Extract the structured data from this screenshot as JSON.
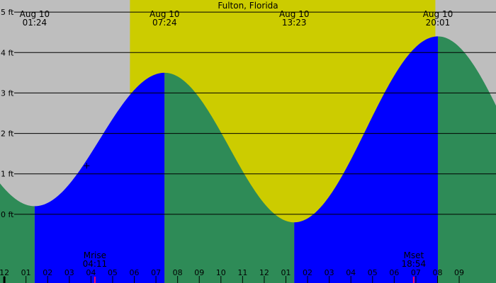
{
  "chart_data": {
    "type": "area",
    "title": "Fulton, Florida",
    "colors": {
      "night": "#bebebe",
      "day": "#cccc00",
      "rising": "#0000ff",
      "falling": "#2e8b57",
      "text": "#000000",
      "moon_marker": "#ff0066"
    },
    "y_unit": "ft",
    "yticks": [
      0,
      1,
      2,
      3,
      4,
      5
    ],
    "ytick_labels": [
      "0 ft",
      "1 ft",
      "2 ft",
      "3 ft",
      "4 ft",
      "5 ft"
    ],
    "ylim": [
      -1.7,
      5.3
    ],
    "xlim_hours": [
      -0.2,
      22.7
    ],
    "daylight_hours": [
      5.8,
      19.9
    ],
    "tide_extremes": [
      {
        "date": "Aug 10",
        "time": "01:24",
        "height": 0.2
      },
      {
        "date": "Aug 10",
        "time": "07:24",
        "height": 3.5
      },
      {
        "date": "Aug 10",
        "time": "13:23",
        "height": -0.2
      },
      {
        "date": "Aug 10",
        "time": "20:01",
        "height": 4.4
      }
    ],
    "tide_before_start": {
      "hour": -4.6,
      "height": 3.6
    },
    "tide_after_end": {
      "hour": 26.6,
      "height": -0.4
    },
    "hour_ticks": [
      {
        "hour": -1,
        "label": "11"
      },
      {
        "hour": 0,
        "label": "12"
      },
      {
        "hour": 1,
        "label": "01"
      },
      {
        "hour": 2,
        "label": "02"
      },
      {
        "hour": 3,
        "label": "03"
      },
      {
        "hour": 4,
        "label": "04"
      },
      {
        "hour": 5,
        "label": "05"
      },
      {
        "hour": 6,
        "label": "06"
      },
      {
        "hour": 7,
        "label": "07"
      },
      {
        "hour": 8,
        "label": "08"
      },
      {
        "hour": 9,
        "label": "09"
      },
      {
        "hour": 10,
        "label": "10"
      },
      {
        "hour": 11,
        "label": "11"
      },
      {
        "hour": 12,
        "label": "12"
      },
      {
        "hour": 13,
        "label": "01"
      },
      {
        "hour": 14,
        "label": "02"
      },
      {
        "hour": 15,
        "label": "03"
      },
      {
        "hour": 16,
        "label": "04"
      },
      {
        "hour": 17,
        "label": "05"
      },
      {
        "hour": 18,
        "label": "06"
      },
      {
        "hour": 19,
        "label": "07"
      },
      {
        "hour": 20,
        "label": "08"
      },
      {
        "hour": 21,
        "label": "09"
      }
    ],
    "moon_events": [
      {
        "label": "Mrise",
        "time": "04:11",
        "hour": 4.18
      },
      {
        "label": "Mset",
        "time": "18:54",
        "hour": 18.9
      }
    ],
    "midnight_hour": 0,
    "current_time_marker": {
      "hour": 3.8,
      "height": 1.2
    }
  }
}
